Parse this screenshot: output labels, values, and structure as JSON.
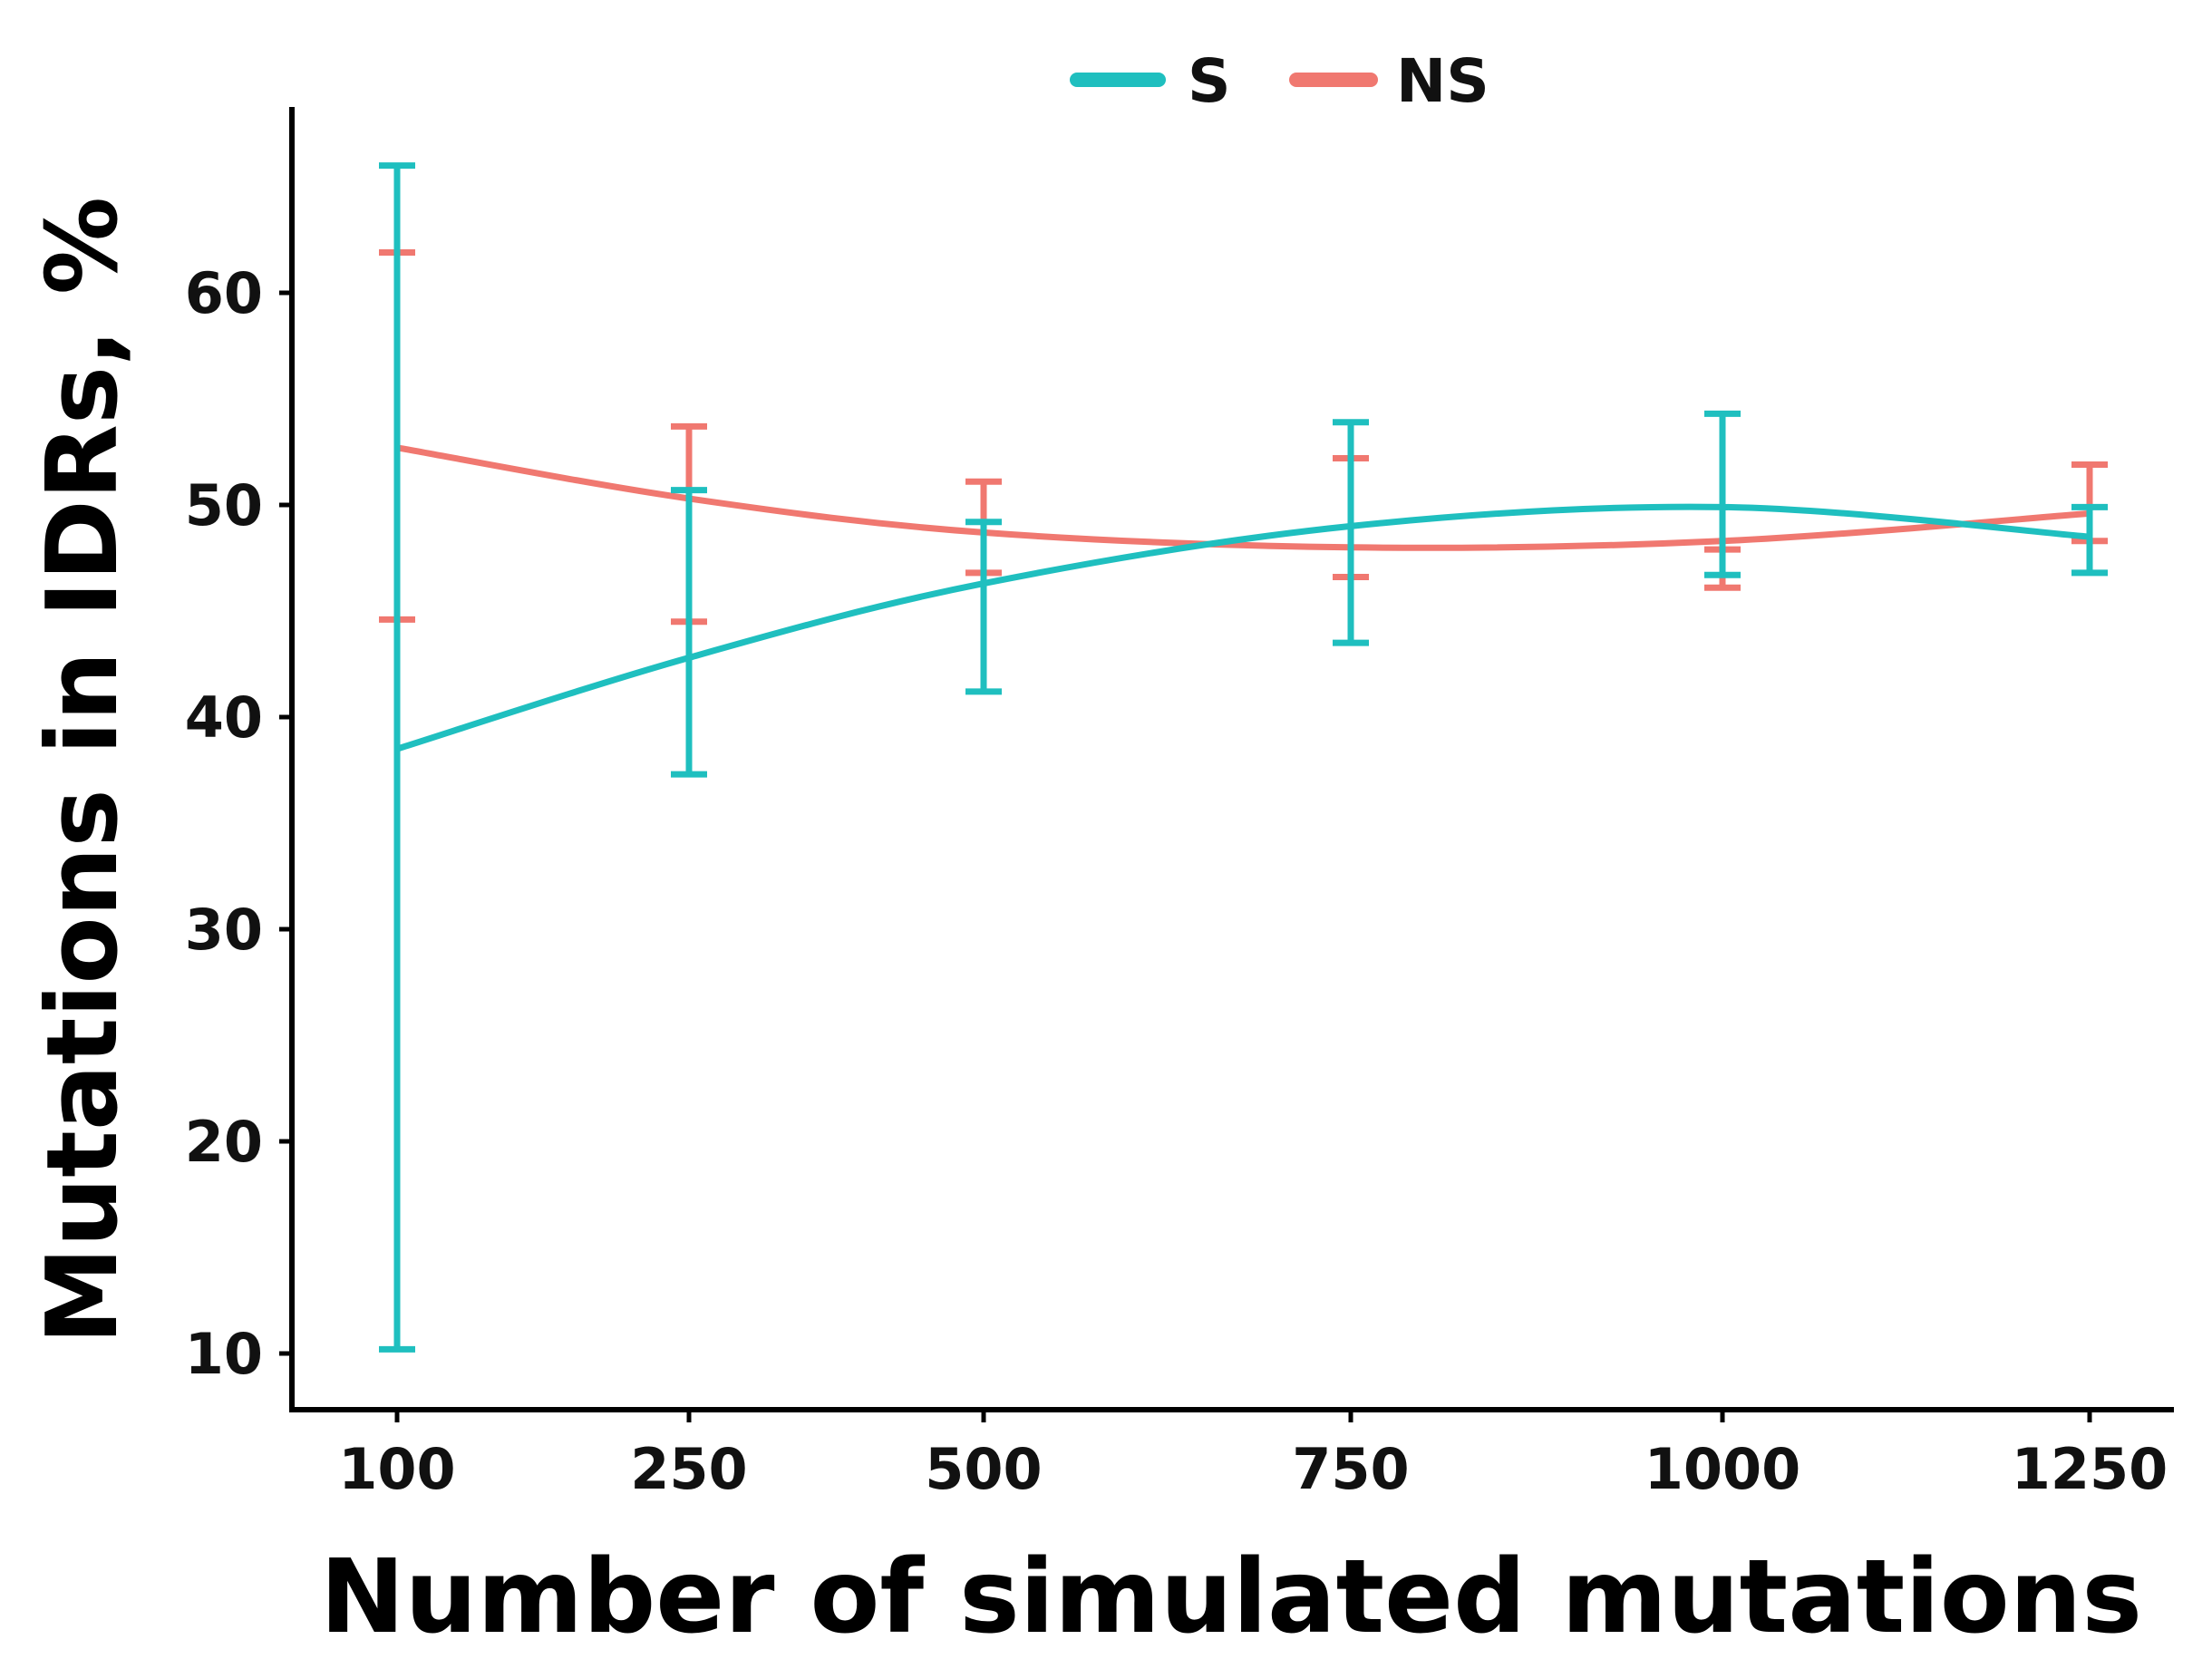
{
  "chart_data": {
    "type": "line",
    "title": "",
    "xlabel": "Number of simulated mutations",
    "ylabel": "Mutations in IDRs, %",
    "categories": [
      "100",
      "250",
      "500",
      "750",
      "1000",
      "1250"
    ],
    "y_ticks": [
      "10",
      "20",
      "30",
      "40",
      "50",
      "60"
    ],
    "ylim": [
      7.5,
      68.5
    ],
    "legend_position": "top",
    "series": [
      {
        "name": "S",
        "color": "#1fbfbf",
        "values": [
          38.5,
          42.8,
          46.3,
          49.0,
          49.9,
          48.5
        ],
        "err_low": [
          10.2,
          37.3,
          41.2,
          43.5,
          46.7,
          46.8
        ],
        "err_high": [
          66.0,
          50.7,
          49.2,
          53.9,
          54.3,
          49.9
        ]
      },
      {
        "name": "NS",
        "color": "#f07870",
        "values": [
          52.7,
          50.3,
          48.7,
          48.0,
          48.3,
          49.6
        ],
        "err_low": [
          44.6,
          44.5,
          46.8,
          46.6,
          46.1,
          48.3
        ],
        "err_high": [
          61.9,
          53.7,
          51.1,
          52.2,
          47.9,
          51.9
        ]
      }
    ]
  }
}
